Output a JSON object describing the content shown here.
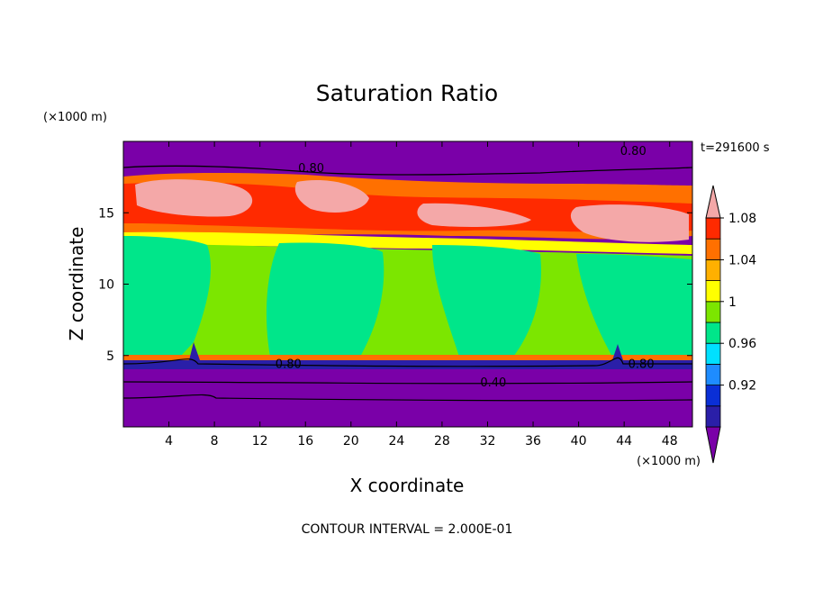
{
  "chart_data": {
    "type": "heatmap",
    "title": "Saturation Ratio",
    "xlabel": "X coordinate",
    "ylabel": "Z coordinate",
    "x_unit": "(×1000 m)",
    "y_unit": "(×1000 m)",
    "time_label": "t=291600 s",
    "footer": "CONTOUR INTERVAL = 2.000E-01",
    "xlim": [
      0,
      50
    ],
    "ylim": [
      0,
      20
    ],
    "x_ticks": [
      4,
      8,
      12,
      16,
      20,
      24,
      28,
      32,
      36,
      40,
      44,
      48
    ],
    "y_ticks": [
      5,
      10,
      15
    ],
    "contour_labels": [
      {
        "text": "0.80",
        "x": 16.5,
        "z": 18.1
      },
      {
        "text": "0.80",
        "x": 44.8,
        "z": 19.3
      },
      {
        "text": "0.80",
        "x": 14.5,
        "z": 4.4
      },
      {
        "text": "0.80",
        "x": 45.5,
        "z": 4.4
      },
      {
        "text": "0.40",
        "x": 32.5,
        "z": 3.1
      }
    ],
    "colorbar": {
      "colors": [
        "#7a00a8",
        "#2a1fa8",
        "#0a2fd6",
        "#1e8cff",
        "#00e0ff",
        "#00e68a",
        "#7ce600",
        "#ffff00",
        "#ffb000",
        "#ff7000",
        "#ff2a00",
        "#f4a8a8"
      ],
      "tick_labels": [
        "0.92",
        "0.96",
        "1",
        "1.04",
        "1.08"
      ]
    },
    "regions": {
      "lower_layer": {
        "z_range": [
          0,
          4.6
        ],
        "value_range": [
          0.4,
          0.9
        ]
      },
      "mid_troposphere": {
        "z_range": [
          4.6,
          13.5
        ],
        "value_range": [
          0.98,
          1.02
        ]
      },
      "upper_moist_band": {
        "z_range": [
          13.5,
          17.5
        ],
        "value_range": [
          1.02,
          1.1
        ]
      },
      "top_layer": {
        "z_range": [
          17.5,
          20
        ],
        "value_range": [
          0.7,
          0.9
        ]
      }
    }
  }
}
